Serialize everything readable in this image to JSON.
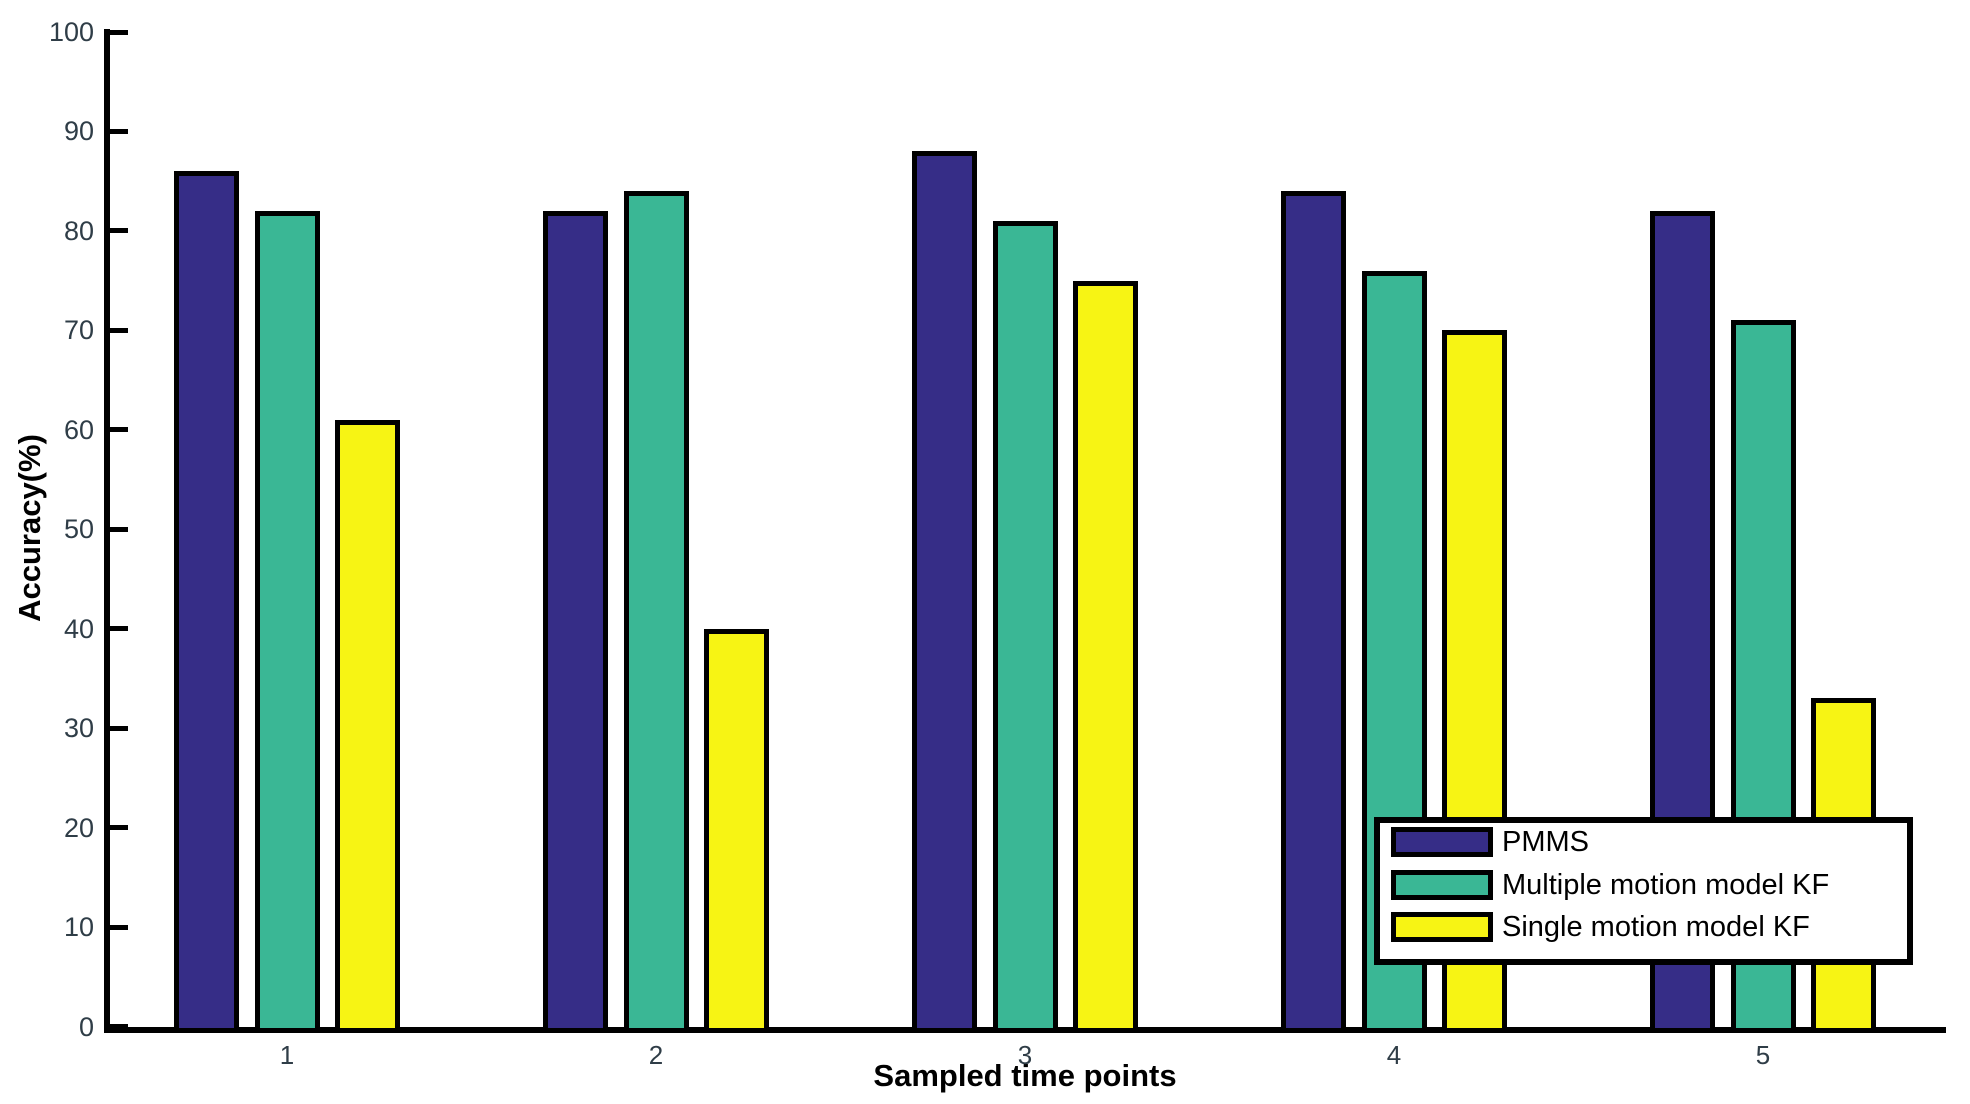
{
  "chart_data": {
    "type": "bar",
    "title": "",
    "xlabel": "Sampled time points",
    "ylabel": "Accuracy(%)",
    "categories": [
      "1",
      "2",
      "3",
      "4",
      "5"
    ],
    "series": [
      {
        "name": "PMMS",
        "color": "#362d87",
        "values": [
          86,
          82,
          88,
          84,
          82
        ]
      },
      {
        "name": "Multiple motion model KF",
        "color": "#3ab795",
        "values": [
          82,
          84,
          81,
          76,
          71
        ]
      },
      {
        "name": "Single motion model KF",
        "color": "#f7f414",
        "values": [
          61,
          40,
          75,
          70,
          33
        ]
      }
    ],
    "ylim": [
      0,
      100
    ],
    "yticks": [
      0,
      10,
      20,
      30,
      40,
      50,
      60,
      70,
      80,
      90,
      100
    ],
    "grid": false,
    "legend_position": "inside-right",
    "bar_edge_color": "#000000",
    "axis_color": "#000000",
    "tick_label_color": "#2f3d47"
  }
}
